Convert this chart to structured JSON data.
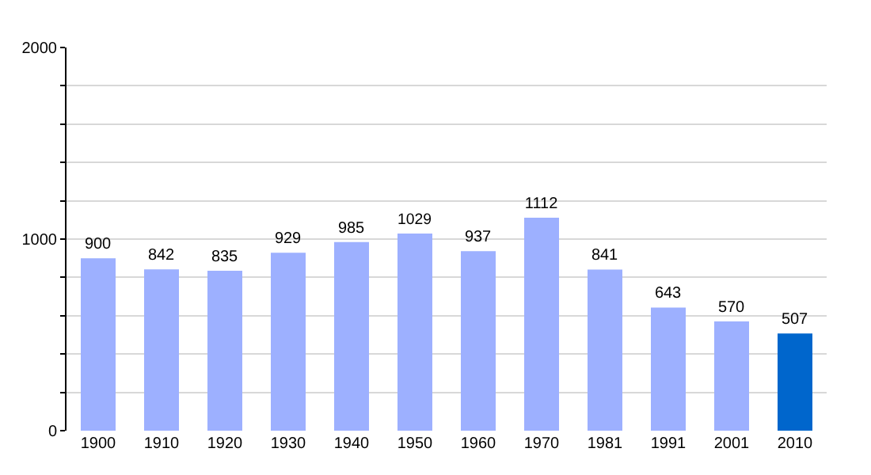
{
  "chart_data": {
    "type": "bar",
    "categories": [
      "1900",
      "1910",
      "1920",
      "1930",
      "1940",
      "1950",
      "1960",
      "1970",
      "1981",
      "1991",
      "2001",
      "2010"
    ],
    "values": [
      900,
      842,
      835,
      929,
      985,
      1029,
      937,
      1112,
      841,
      643,
      570,
      507
    ],
    "colors": [
      "#9db0ff",
      "#9db0ff",
      "#9db0ff",
      "#9db0ff",
      "#9db0ff",
      "#9db0ff",
      "#9db0ff",
      "#9db0ff",
      "#9db0ff",
      "#9db0ff",
      "#9db0ff",
      "#0066cc"
    ],
    "ylim": [
      0,
      2000
    ],
    "yticks": [
      0,
      {
        "value": 200,
        "label": null
      },
      {
        "value": 400,
        "label": null
      },
      {
        "value": 600,
        "label": null
      },
      {
        "value": 800,
        "label": null
      },
      1000,
      {
        "value": 1200,
        "label": null
      },
      {
        "value": 1400,
        "label": null
      },
      {
        "value": 1600,
        "label": null
      },
      {
        "value": 1800,
        "label": null
      },
      2000
    ],
    "grid": "y",
    "data_labels": true
  }
}
